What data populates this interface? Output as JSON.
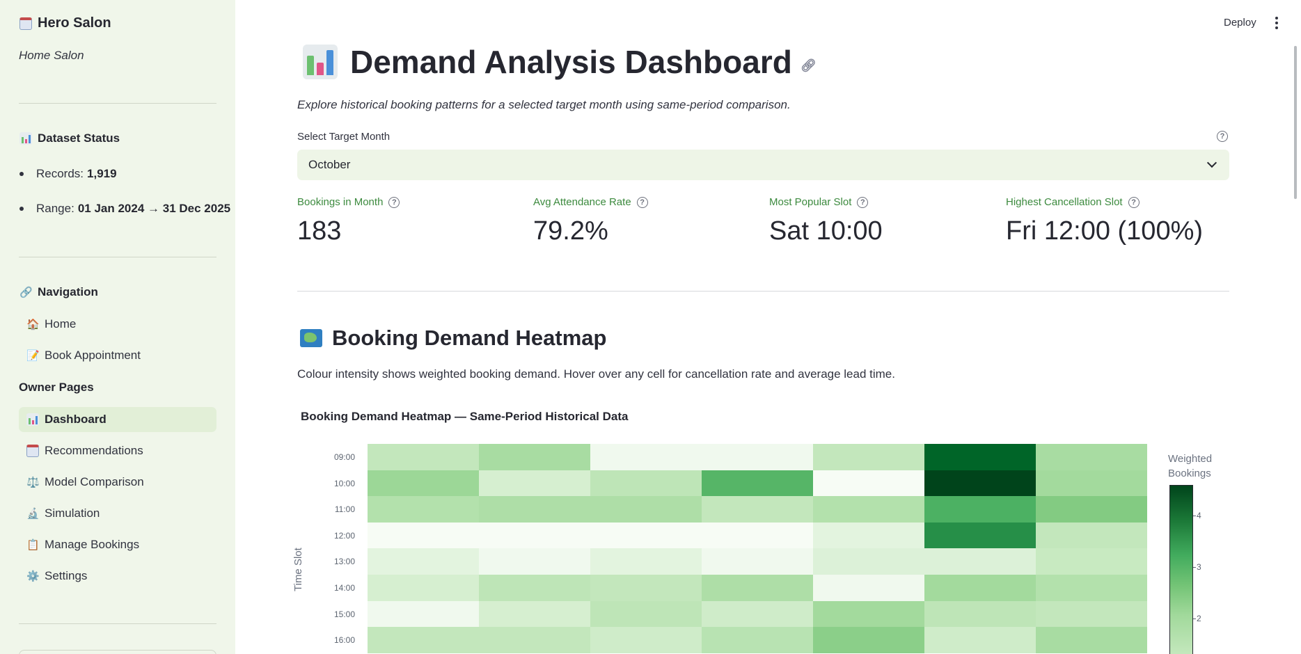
{
  "sidebar": {
    "brand": "Hero Salon",
    "subtitle": "Home Salon",
    "dataset_status": {
      "heading": "Dataset Status",
      "records_label": "Records:",
      "records_value": "1,919",
      "range_label": "Range:",
      "range_value": "01 Jan 2024 → 31 Dec 2025"
    },
    "navigation_heading": "Navigation",
    "nav_items": [
      {
        "label": "Home",
        "icon": "house-icon"
      },
      {
        "label": "Book Appointment",
        "icon": "memo-icon"
      }
    ],
    "owner_group": "Owner Pages",
    "owner_items": [
      {
        "label": "Dashboard",
        "icon": "bar-chart-icon",
        "active": true
      },
      {
        "label": "Recommendations",
        "icon": "calendar-icon"
      },
      {
        "label": "Model Comparison",
        "icon": "balance-scale-icon"
      },
      {
        "label": "Simulation",
        "icon": "microscope-icon"
      },
      {
        "label": "Manage Bookings",
        "icon": "clipboard-icon"
      },
      {
        "label": "Settings",
        "icon": "gear-icon"
      }
    ]
  },
  "toolbar": {
    "deploy_label": "Deploy"
  },
  "main": {
    "title": "Demand Analysis Dashboard",
    "subtitle": "Explore historical booking patterns for a selected target month using same-period comparison.",
    "select_label": "Select Target Month",
    "select_value": "October",
    "metrics": [
      {
        "label": "Bookings in Month",
        "value": "183"
      },
      {
        "label": "Avg Attendance Rate",
        "value": "79.2%"
      },
      {
        "label": "Most Popular Slot",
        "value": "Sat 10:00"
      },
      {
        "label": "Highest Cancellation Slot",
        "value": "Fri 12:00 (100%)"
      }
    ],
    "heatmap_heading": "Booking Demand Heatmap",
    "heatmap_description": "Colour intensity shows weighted booking demand. Hover over any cell for cancellation rate and average lead time."
  },
  "colors": {
    "accent_green": "#3c8a3e",
    "sidebar_bg": "#f0f6ea",
    "active_item_bg": "#e2efd7"
  },
  "chart_data": {
    "type": "heatmap",
    "title": "Booking Demand Heatmap — Same-Period Historical Data",
    "ylabel": "Time Slot",
    "colorbar_title": "Weighted Bookings",
    "colorbar_ticks": [
      4,
      3,
      2
    ],
    "colorscale": "Greens",
    "value_range": [
      1,
      4.6
    ],
    "y": [
      "09:00",
      "10:00",
      "11:00",
      "12:00",
      "13:00",
      "14:00",
      "15:00",
      "16:00"
    ],
    "columns": 7,
    "values": [
      [
        1.8,
        2.3,
        1.1,
        1.1,
        1.8,
        4.4,
        2.3
      ],
      [
        2.5,
        1.5,
        1.9,
        3.3,
        1.0,
        4.6,
        2.4
      ],
      [
        2.1,
        2.2,
        2.2,
        1.8,
        2.1,
        3.4,
        2.8
      ],
      [
        1.0,
        1.0,
        1.0,
        1.0,
        1.3,
        4.0,
        1.8
      ],
      [
        1.3,
        1.1,
        1.3,
        1.1,
        1.4,
        1.4,
        1.7
      ],
      [
        1.5,
        1.9,
        1.8,
        2.2,
        1.1,
        2.4,
        2.1
      ],
      [
        1.1,
        1.5,
        1.9,
        1.6,
        2.4,
        1.9,
        1.8
      ],
      [
        1.8,
        1.8,
        1.6,
        2.0,
        2.7,
        1.6,
        2.3
      ]
    ]
  }
}
